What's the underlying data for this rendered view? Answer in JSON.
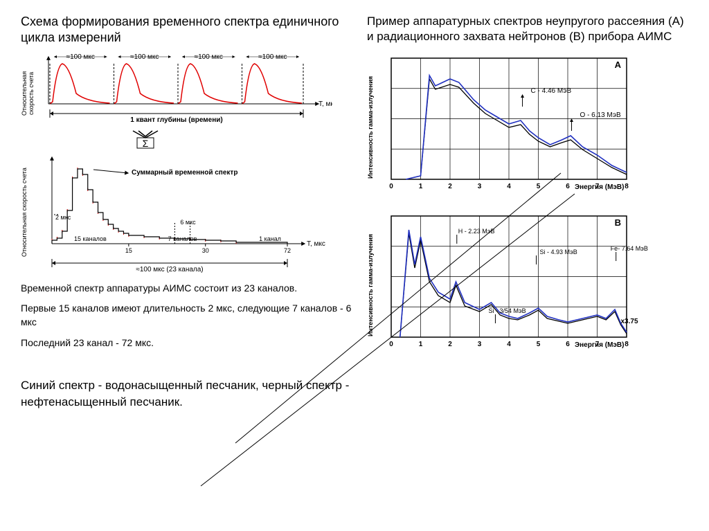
{
  "left": {
    "title": "Схема формирования временного спектра единичного цикла измерений",
    "upper_chart": {
      "ylabel": "Относительная\nскорость счета",
      "xlabel": "Т, мкс",
      "peak_label": "≈100 мкс",
      "peak_color": "#e00000",
      "axis_color": "#000000",
      "depth_label": "1 квант глубины (времени)",
      "peaks": 4,
      "height": 80
    },
    "sigma": "Σ",
    "lower_chart": {
      "ylabel": "Относительная скорость счета",
      "xlabel": "Т, мкс",
      "title": "Суммарный временной спектр",
      "xticks": [
        15,
        30,
        72
      ],
      "annotations": {
        "2mks": "2 мкс",
        "6mks": "6 мкс",
        "15ch": "15 каналов",
        "7ch": "7 каналов",
        "1ch": "1 канал",
        "range": "≈100 мкс (23 канала)"
      },
      "step_color": "#e00000",
      "axis_color": "#000000"
    },
    "p1": "Временной спектр аппаратуры АИМС состоит из 23 каналов.",
    "p2": "Первые 15 каналов имеют длительность 2 мкс, следующие 7 каналов - 6 мкс",
    "p3": "Последний 23 канал - 72 мкс.",
    "p4": "Синий спектр - водонасыщенный песчаник, черный спектр - нефтенасыщенный песчаник."
  },
  "right": {
    "title": "Пример аппаратурных спектров неупругого рассеяния (А) и радиационного захвата нейтронов (В) прибора АИМС",
    "chartA": {
      "label": "А",
      "ylabel": "Интенсивность гамма-излучения",
      "xlabel": "Энергия (МэВ)",
      "xmin": 0,
      "xmax": 8,
      "peaks": [
        {
          "label": "C - 4.46 МэВ",
          "x": 4.46
        },
        {
          "label": "O - 6.13 МэВ",
          "x": 6.13
        }
      ],
      "blue": "#2030c0",
      "black": "#000000",
      "grid": "#000000",
      "curve_blue": [
        [
          0.5,
          175
        ],
        [
          1,
          170
        ],
        [
          1.3,
          25
        ],
        [
          1.5,
          40
        ],
        [
          2,
          30
        ],
        [
          2.3,
          35
        ],
        [
          2.8,
          60
        ],
        [
          3.2,
          75
        ],
        [
          3.6,
          85
        ],
        [
          4,
          95
        ],
        [
          4.4,
          90
        ],
        [
          4.7,
          105
        ],
        [
          5,
          115
        ],
        [
          5.4,
          125
        ],
        [
          5.8,
          118
        ],
        [
          6.1,
          112
        ],
        [
          6.5,
          128
        ],
        [
          7,
          140
        ],
        [
          7.5,
          155
        ],
        [
          8,
          165
        ]
      ],
      "curve_black": [
        [
          0.5,
          175
        ],
        [
          1,
          170
        ],
        [
          1.3,
          30
        ],
        [
          1.5,
          45
        ],
        [
          2,
          38
        ],
        [
          2.3,
          42
        ],
        [
          2.8,
          65
        ],
        [
          3.2,
          80
        ],
        [
          3.6,
          90
        ],
        [
          4,
          100
        ],
        [
          4.4,
          96
        ],
        [
          4.7,
          110
        ],
        [
          5,
          120
        ],
        [
          5.4,
          128
        ],
        [
          5.8,
          122
        ],
        [
          6.1,
          118
        ],
        [
          6.5,
          132
        ],
        [
          7,
          145
        ],
        [
          7.5,
          158
        ],
        [
          8,
          168
        ]
      ]
    },
    "chartB": {
      "label": "В",
      "ylabel": "Интенсивность гамма-излучения",
      "xlabel": "Энергия (МэВ)",
      "xmin": 0,
      "xmax": 8,
      "peaks": [
        {
          "label": "H - 2.23 МэВ",
          "x": 2.23
        },
        {
          "label": "Si - 3/54 МэВ",
          "x": 3.54
        },
        {
          "label": "Si - 4.93 МэВ",
          "x": 4.93
        },
        {
          "label": "Fe- 7.64 МэВ",
          "x": 7.64
        },
        {
          "label": "x3.75",
          "x": 7.8
        }
      ],
      "blue": "#2030c0",
      "black": "#000000",
      "grid": "#000000",
      "curve_blue": [
        [
          0.3,
          175
        ],
        [
          0.6,
          20
        ],
        [
          0.8,
          70
        ],
        [
          1,
          30
        ],
        [
          1.3,
          90
        ],
        [
          1.6,
          110
        ],
        [
          2,
          120
        ],
        [
          2.2,
          95
        ],
        [
          2.5,
          125
        ],
        [
          3,
          135
        ],
        [
          3.4,
          125
        ],
        [
          3.7,
          140
        ],
        [
          4,
          145
        ],
        [
          4.3,
          148
        ],
        [
          4.7,
          140
        ],
        [
          5,
          133
        ],
        [
          5.3,
          145
        ],
        [
          5.7,
          150
        ],
        [
          6,
          153
        ],
        [
          6.5,
          148
        ],
        [
          7,
          143
        ],
        [
          7.3,
          148
        ],
        [
          7.6,
          135
        ],
        [
          7.8,
          155
        ],
        [
          8,
          168
        ]
      ],
      "curve_black": [
        [
          0.3,
          175
        ],
        [
          0.6,
          25
        ],
        [
          0.8,
          75
        ],
        [
          1,
          35
        ],
        [
          1.3,
          95
        ],
        [
          1.6,
          115
        ],
        [
          2,
          125
        ],
        [
          2.2,
          100
        ],
        [
          2.5,
          130
        ],
        [
          3,
          138
        ],
        [
          3.4,
          128
        ],
        [
          3.7,
          143
        ],
        [
          4,
          148
        ],
        [
          4.3,
          150
        ],
        [
          4.7,
          143
        ],
        [
          5,
          136
        ],
        [
          5.3,
          148
        ],
        [
          5.7,
          152
        ],
        [
          6,
          155
        ],
        [
          6.5,
          150
        ],
        [
          7,
          145
        ],
        [
          7.3,
          150
        ],
        [
          7.6,
          138
        ],
        [
          7.8,
          157
        ],
        [
          8,
          170
        ]
      ]
    }
  }
}
